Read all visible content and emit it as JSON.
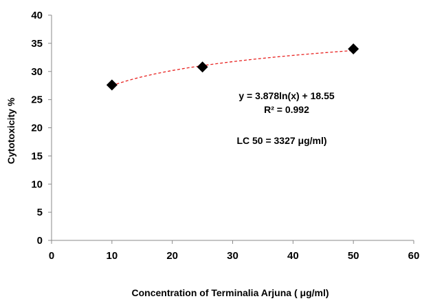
{
  "chart_data": {
    "type": "scatter",
    "title": "",
    "xlabel": "Concentration of  Terminalia Arjuna ( μg/ml)",
    "ylabel": "Cytotoxicity  %",
    "xlim": [
      0,
      60
    ],
    "ylim": [
      0,
      40
    ],
    "xticks": [
      0,
      10,
      20,
      30,
      40,
      50,
      60
    ],
    "yticks": [
      0,
      5,
      10,
      15,
      20,
      25,
      30,
      35,
      40
    ],
    "x_tick_labels": [
      "0",
      "10",
      "20",
      "30",
      "40",
      "50",
      "60"
    ],
    "y_tick_labels": [
      "0",
      "5",
      "10",
      "15",
      "20",
      "25",
      "30",
      "35",
      "40"
    ],
    "grid": false,
    "legend": false,
    "series": [
      {
        "marker": "diamond",
        "color": "#000000",
        "x": [
          10,
          25,
          50
        ],
        "y": [
          27.6,
          30.8,
          34.0
        ]
      }
    ],
    "trendline": {
      "type": "logarithmic",
      "a": 3.878,
      "b": 18.55,
      "x_range": [
        10,
        50
      ],
      "color": "#e8201e",
      "style": "dashed"
    },
    "annotations": {
      "equation": "y = 3.878ln(x) + 18.55",
      "r_squared": "R² = 0.992",
      "lc50": "LC 50 = 3327 μg/ml)"
    }
  }
}
